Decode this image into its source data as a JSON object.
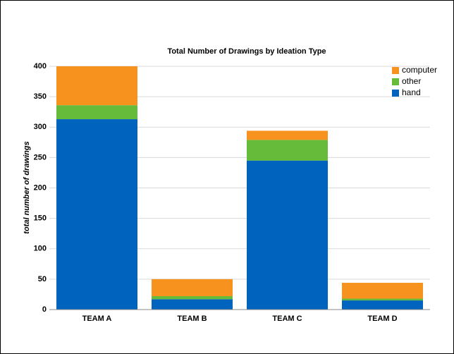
{
  "chart_data": {
    "type": "stacked_bar",
    "title": "Total Number of Drawings by Ideation Type",
    "y_label": "total number of drawings",
    "categories": [
      "TEAM A",
      "TEAM B",
      "TEAM C",
      "TEAM D"
    ],
    "series": [
      {
        "name": "hand",
        "color": "#0063be",
        "values": [
          313,
          17,
          245,
          15
        ]
      },
      {
        "name": "other",
        "color": "#66bb3a",
        "values": [
          23,
          5,
          34,
          3
        ]
      },
      {
        "name": "computer",
        "color": "#f7921e",
        "values": [
          64,
          28,
          15,
          26
        ]
      }
    ],
    "ylim": [
      0,
      400
    ],
    "yticks": [
      0,
      50,
      100,
      150,
      200,
      250,
      300,
      350,
      400
    ],
    "grid": true,
    "legend": "top-right"
  }
}
